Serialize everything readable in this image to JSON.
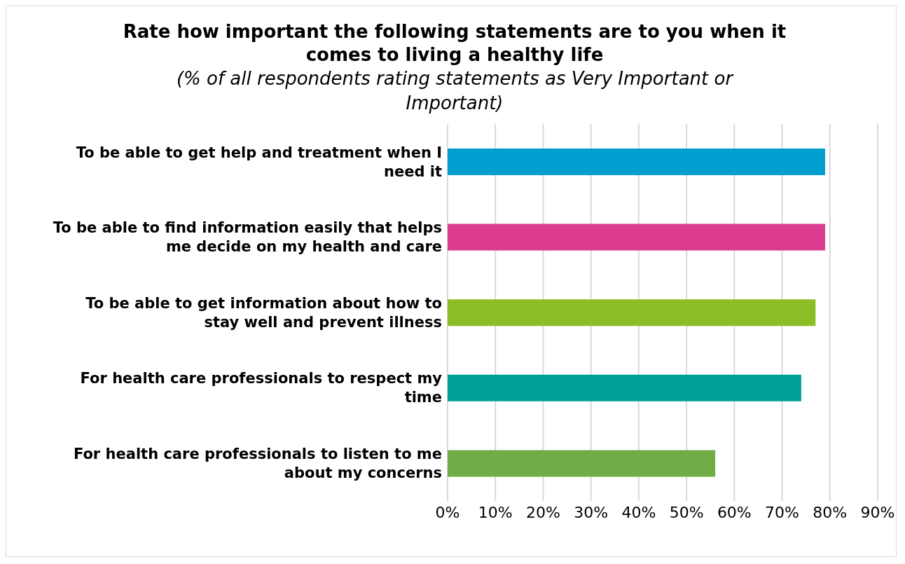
{
  "chart_data": {
    "type": "bar",
    "orientation": "horizontal",
    "title": "Rate how important the following statements are to you when it comes to living a healthy life",
    "subtitle": "(% of all respondents rating statements as Very Important or Important)",
    "categories": [
      "To be able to get help and treatment when I need it",
      "To be able to find information easily that helps me decide on my health and care",
      "To be able to get information about how to stay well and prevent illness",
      "For health care professionals to respect my time",
      "For health care professionals to listen to me about my concerns"
    ],
    "values": [
      79,
      79,
      77,
      74,
      56
    ],
    "colors": [
      "#009fd0",
      "#db3c8e",
      "#8bbd25",
      "#00a096",
      "#70ad47"
    ],
    "xlim": [
      0,
      90
    ],
    "xticks": [
      {
        "value": 0,
        "label": "0%"
      },
      {
        "value": 10,
        "label": "10%"
      },
      {
        "value": 20,
        "label": "20%"
      },
      {
        "value": 30,
        "label": "30%"
      },
      {
        "value": 40,
        "label": "40%"
      },
      {
        "value": 50,
        "label": "50%"
      },
      {
        "value": 60,
        "label": "60%"
      },
      {
        "value": 70,
        "label": "70%"
      },
      {
        "value": 80,
        "label": "80%"
      },
      {
        "value": 90,
        "label": "90%"
      }
    ],
    "grid": "x"
  }
}
